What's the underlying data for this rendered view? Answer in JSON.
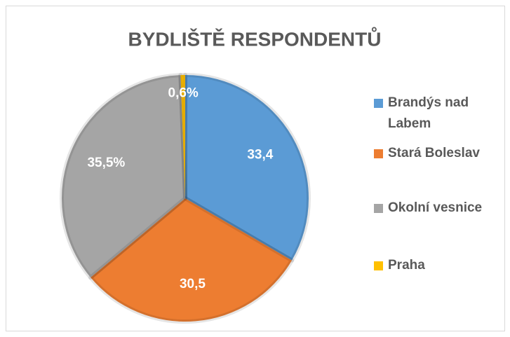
{
  "chart_data": {
    "type": "pie",
    "title": "BYDLIŠTĚ RESPONDENTŮ",
    "categories": [
      "Brandýs nad Labem",
      "Stará Boleslav",
      "Okolní vesnice",
      "Praha"
    ],
    "values": [
      33.4,
      30.5,
      35.5,
      0.6
    ],
    "value_labels": [
      "33,4",
      "30,5",
      "35,5%",
      "0,6%"
    ],
    "colors": [
      "#5b9bd5",
      "#ed7d31",
      "#a5a5a5",
      "#ffc000"
    ],
    "legend": "right"
  }
}
